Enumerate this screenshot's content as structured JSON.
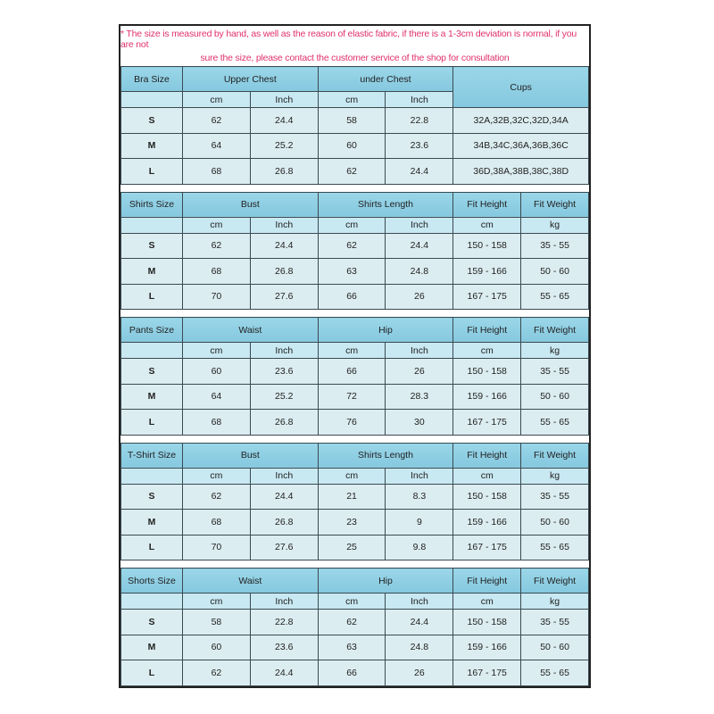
{
  "note": {
    "line1": "* The size is measured by hand, as well as the reason of elastic fabric, if there is a 1-3cm deviation is normal, if you are not",
    "line2": "sure the size, please contact the customer service of the shop for consultation"
  },
  "colors": {
    "note_text": "#e0306e",
    "header_bg": "#8ecfe3",
    "subheader_bg": "#c8e8f2",
    "row_bg": "#dcedf1"
  },
  "sections": [
    {
      "title": "Bra Size",
      "groups": [
        "Upper Chest",
        "under Chest"
      ],
      "extra": "Cups",
      "units": [
        "cm",
        "Inch",
        "cm",
        "Inch"
      ],
      "rows": [
        [
          "S",
          "62",
          "24.4",
          "58",
          "22.8",
          "32A,32B,32C,32D,34A"
        ],
        [
          "M",
          "64",
          "25.2",
          "60",
          "23.6",
          "34B,34C,36A,36B,36C"
        ],
        [
          "L",
          "68",
          "26.8",
          "62",
          "24.4",
          "36D,38A,38B,38C,38D"
        ]
      ]
    },
    {
      "title": "Shirts Size",
      "groups": [
        "Bust",
        "Shirts Length",
        "Fit Height",
        "Fit Weight"
      ],
      "units": [
        "cm",
        "Inch",
        "cm",
        "Inch",
        "cm",
        "kg"
      ],
      "rows": [
        [
          "S",
          "62",
          "24.4",
          "62",
          "24.4",
          "150 - 158",
          "35 - 55"
        ],
        [
          "M",
          "68",
          "26.8",
          "63",
          "24.8",
          "159 - 166",
          "50 - 60"
        ],
        [
          "L",
          "70",
          "27.6",
          "66",
          "26",
          "167 - 175",
          "55 - 65"
        ]
      ]
    },
    {
      "title": "Pants Size",
      "groups": [
        "Waist",
        "Hip",
        "Fit Height",
        "Fit Weight"
      ],
      "units": [
        "cm",
        "Inch",
        "cm",
        "Inch",
        "cm",
        "kg"
      ],
      "rows": [
        [
          "S",
          "60",
          "23.6",
          "66",
          "26",
          "150 - 158",
          "35 - 55"
        ],
        [
          "M",
          "64",
          "25.2",
          "72",
          "28.3",
          "159 - 166",
          "50 - 60"
        ],
        [
          "L",
          "68",
          "26.8",
          "76",
          "30",
          "167 - 175",
          "55 - 65"
        ]
      ]
    },
    {
      "title": "T-Shirt Size",
      "groups": [
        "Bust",
        "Shirts Length",
        "Fit Height",
        "Fit Weight"
      ],
      "units": [
        "cm",
        "Inch",
        "cm",
        "Inch",
        "cm",
        "kg"
      ],
      "rows": [
        [
          "S",
          "62",
          "24.4",
          "21",
          "8.3",
          "150 - 158",
          "35 - 55"
        ],
        [
          "M",
          "68",
          "26.8",
          "23",
          "9",
          "159 - 166",
          "50 - 60"
        ],
        [
          "L",
          "70",
          "27.6",
          "25",
          "9.8",
          "167 - 175",
          "55 - 65"
        ]
      ]
    },
    {
      "title": "Shorts Size",
      "groups": [
        "Waist",
        "Hip",
        "Fit Height",
        "Fit Weight"
      ],
      "units": [
        "cm",
        "Inch",
        "cm",
        "Inch",
        "cm",
        "kg"
      ],
      "rows": [
        [
          "S",
          "58",
          "22.8",
          "62",
          "24.4",
          "150 - 158",
          "35 - 55"
        ],
        [
          "M",
          "60",
          "23.6",
          "63",
          "24.8",
          "159 - 166",
          "50 - 60"
        ],
        [
          "L",
          "62",
          "24.4",
          "66",
          "26",
          "167 - 175",
          "55 - 65"
        ]
      ]
    }
  ]
}
